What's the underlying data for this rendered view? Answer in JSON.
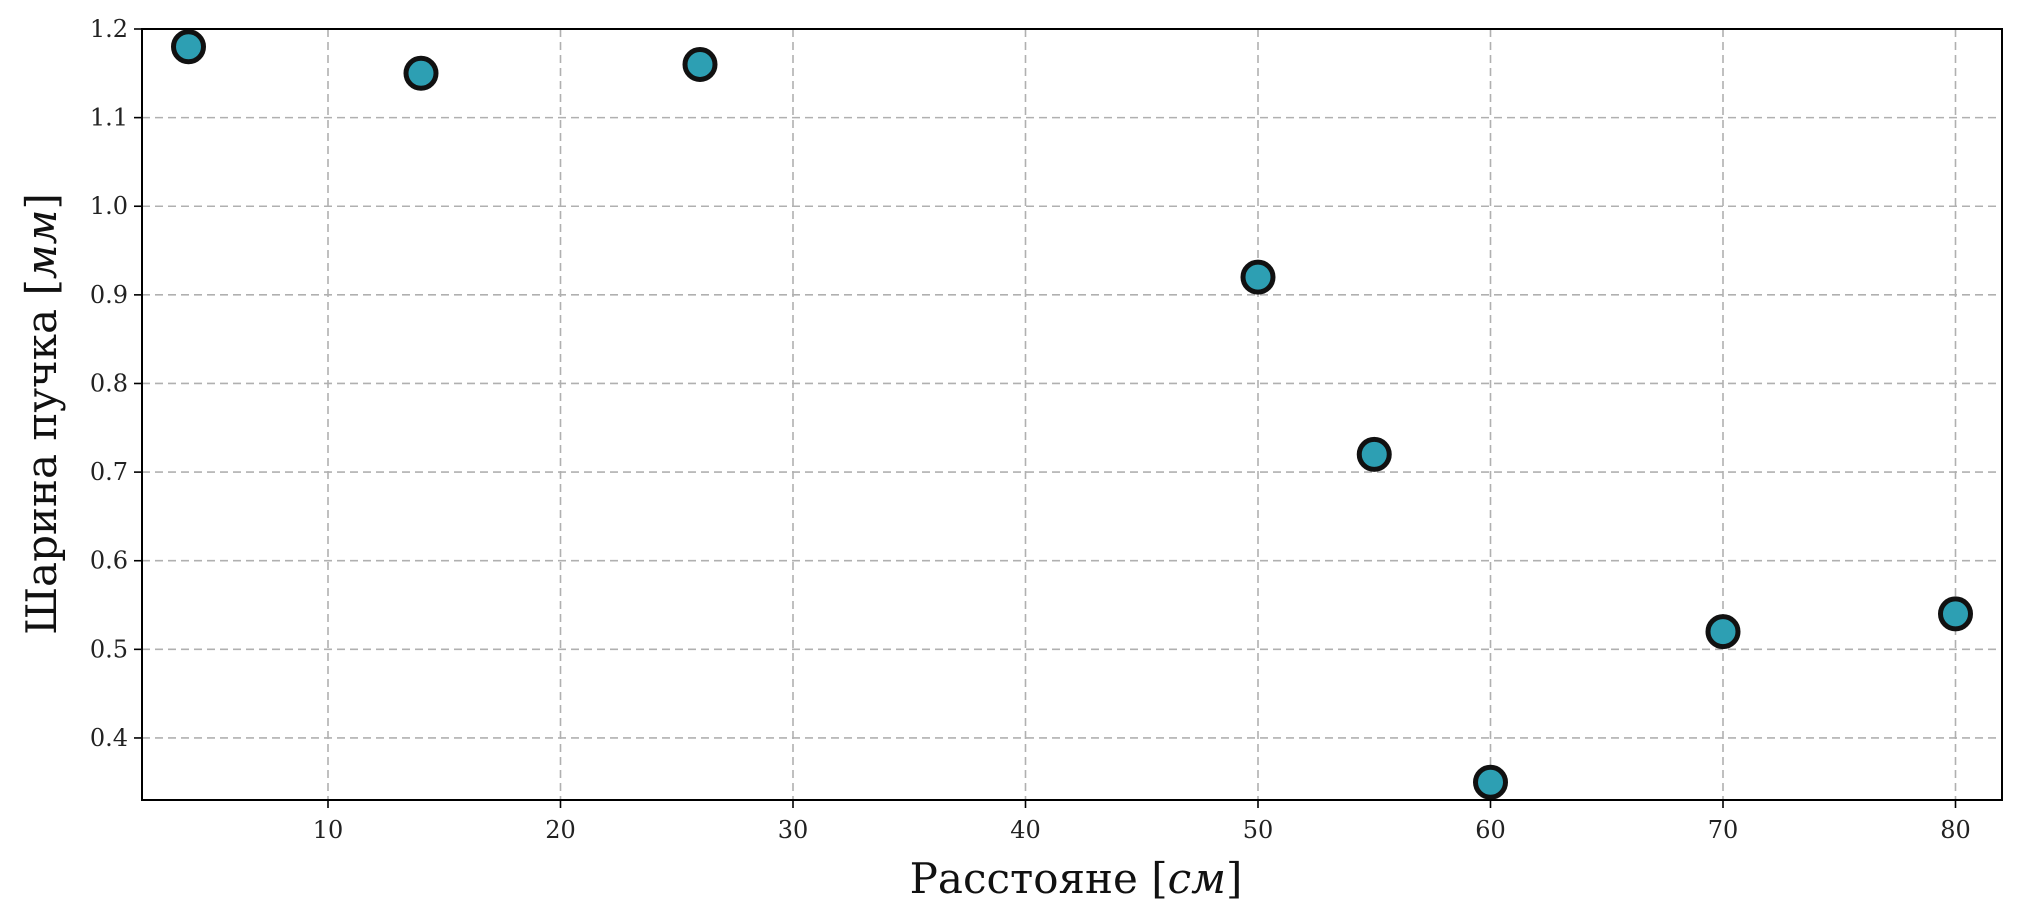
{
  "chart_data": {
    "type": "scatter",
    "xlabel": {
      "main": "Расстояне",
      "open": " [",
      "unit": "см",
      "close": "]"
    },
    "ylabel": {
      "main": "Шарина пучка",
      "open": " [",
      "unit": "мм",
      "close": "]"
    },
    "xlim": [
      2,
      82
    ],
    "ylim": [
      0.33,
      1.2
    ],
    "x_ticks": [
      10,
      20,
      30,
      40,
      50,
      60,
      70,
      80
    ],
    "y_ticks": [
      "0.4",
      "0.5",
      "0.6",
      "0.7",
      "0.8",
      "0.9",
      "1.0",
      "1.1",
      "1.2"
    ],
    "grid": true,
    "marker_color": "#2d9fb3",
    "marker_edge_color": "#111111",
    "points": [
      {
        "x": 4,
        "y": 1.18
      },
      {
        "x": 14,
        "y": 1.15
      },
      {
        "x": 26,
        "y": 1.16
      },
      {
        "x": 50,
        "y": 0.92
      },
      {
        "x": 55,
        "y": 0.72
      },
      {
        "x": 60,
        "y": 0.35
      },
      {
        "x": 70,
        "y": 0.52
      },
      {
        "x": 80,
        "y": 0.54
      }
    ]
  }
}
